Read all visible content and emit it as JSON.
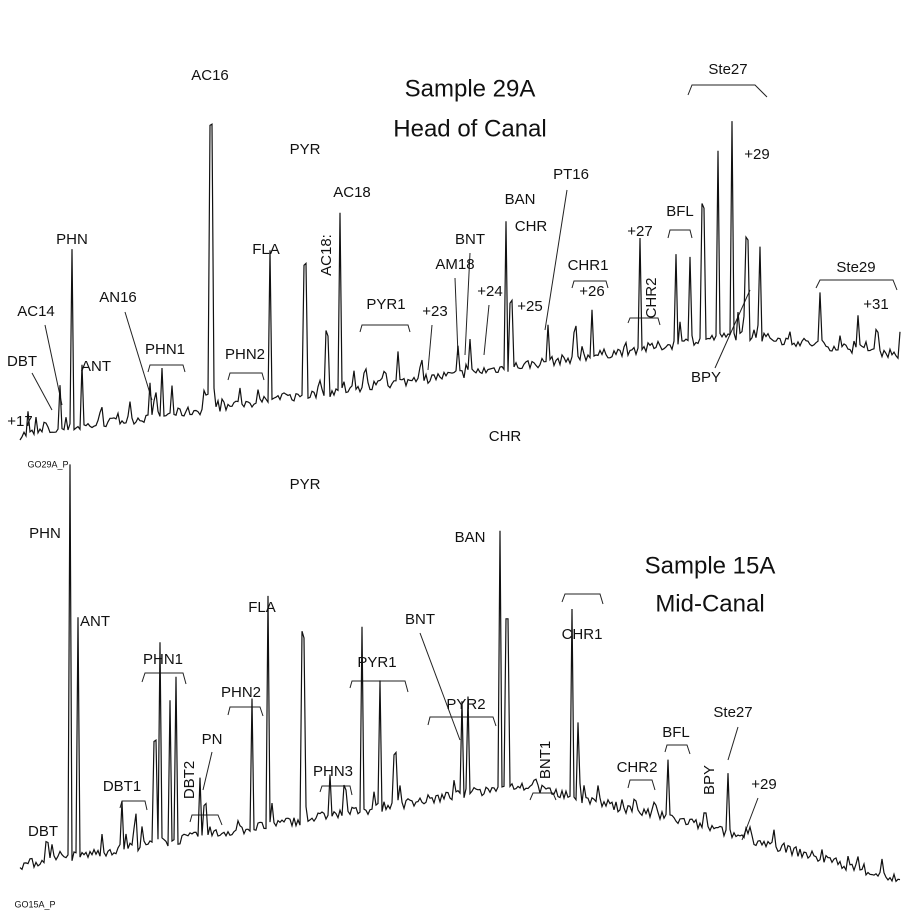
{
  "panels": [
    {
      "title": "Sample 29A",
      "subtitle": "Head of Canal",
      "file_label": "GO29A_P",
      "peak_labels": [
        "AC16",
        "PYR",
        "AC18",
        "AC18:",
        "FLA",
        "PHN",
        "AC14",
        "DBT",
        "ANT",
        "+17",
        "AN16",
        "PHN1",
        "PHN2",
        "PYR1",
        "+23",
        "AM18",
        "BNT",
        "+24",
        "BAN",
        "CHR",
        "+25",
        "PT16",
        "CHR1",
        "+26",
        "+27",
        "CHR2",
        "BFL",
        "Ste27",
        "+29",
        "Ste29",
        "+31",
        "BPY"
      ]
    },
    {
      "title": "Sample 15A",
      "subtitle": "Mid-Canal",
      "file_label": "GO15A_P",
      "peak_labels": [
        "CHR",
        "BAN",
        "PHN",
        "ANT",
        "PYR",
        "FLA",
        "PHN1",
        "PHN2",
        "PN",
        "DBT2",
        "DBT1",
        "DBT",
        "PHN3",
        "PYR1",
        "BNT",
        "PYR2",
        "BNT1",
        "CHR1",
        "CHR2",
        "BFL",
        "BPY",
        "Ste27",
        "+29"
      ]
    }
  ]
}
